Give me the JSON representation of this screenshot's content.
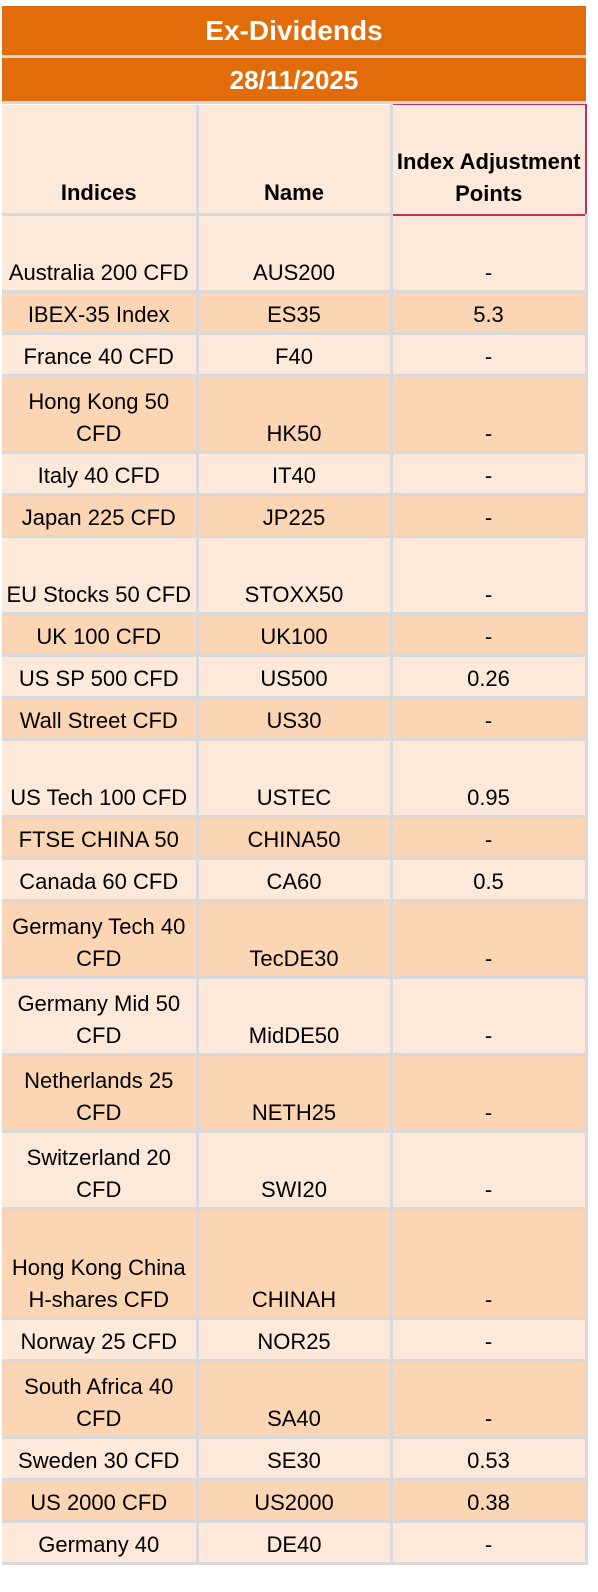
{
  "title": "Ex-Dividends",
  "date": "28/11/2025",
  "headers": {
    "indices": "Indices",
    "name": "Name",
    "adjustment": "Index Adjustment Points"
  },
  "rows": [
    {
      "index": "Australia 200 CFD",
      "name": "AUS200",
      "points": "-"
    },
    {
      "index": "IBEX-35 Index",
      "name": "ES35",
      "points": "5.3"
    },
    {
      "index": "France 40 CFD",
      "name": "F40",
      "points": "-"
    },
    {
      "index": "Hong Kong 50 CFD",
      "name": "HK50",
      "points": "-"
    },
    {
      "index": "Italy 40 CFD",
      "name": "IT40",
      "points": "-"
    },
    {
      "index": "Japan 225 CFD",
      "name": "JP225",
      "points": "-"
    },
    {
      "index": "EU Stocks 50 CFD",
      "name": "STOXX50",
      "points": "-"
    },
    {
      "index": "UK 100 CFD",
      "name": "UK100",
      "points": "-"
    },
    {
      "index": "US SP 500 CFD",
      "name": "US500",
      "points": "0.26"
    },
    {
      "index": "Wall Street CFD",
      "name": "US30",
      "points": "-"
    },
    {
      "index": "US Tech 100 CFD",
      "name": "USTEC",
      "points": "0.95"
    },
    {
      "index": "FTSE CHINA 50",
      "name": "CHINA50",
      "points": "-"
    },
    {
      "index": "Canada 60 CFD",
      "name": "CA60",
      "points": "0.5"
    },
    {
      "index": "Germany Tech 40 CFD",
      "name": "TecDE30",
      "points": "-"
    },
    {
      "index": "Germany Mid 50 CFD",
      "name": "MidDE50",
      "points": "-"
    },
    {
      "index": "Netherlands 25 CFD",
      "name": "NETH25",
      "points": "-"
    },
    {
      "index": "Switzerland 20 CFD",
      "name": "SWI20",
      "points": "-"
    },
    {
      "index": "Hong Kong China H-shares CFD",
      "name": "CHINAH",
      "points": "-"
    },
    {
      "index": "Norway 25 CFD",
      "name": "NOR25",
      "points": "-"
    },
    {
      "index": "South Africa 40 CFD",
      "name": "SA40",
      "points": "-"
    },
    {
      "index": "Sweden 30 CFD",
      "name": "SE30",
      "points": "0.53"
    },
    {
      "index": "US 2000 CFD",
      "name": "US2000",
      "points": "0.38"
    },
    {
      "index": "Germany 40",
      "name": "DE40",
      "points": "-"
    }
  ]
}
